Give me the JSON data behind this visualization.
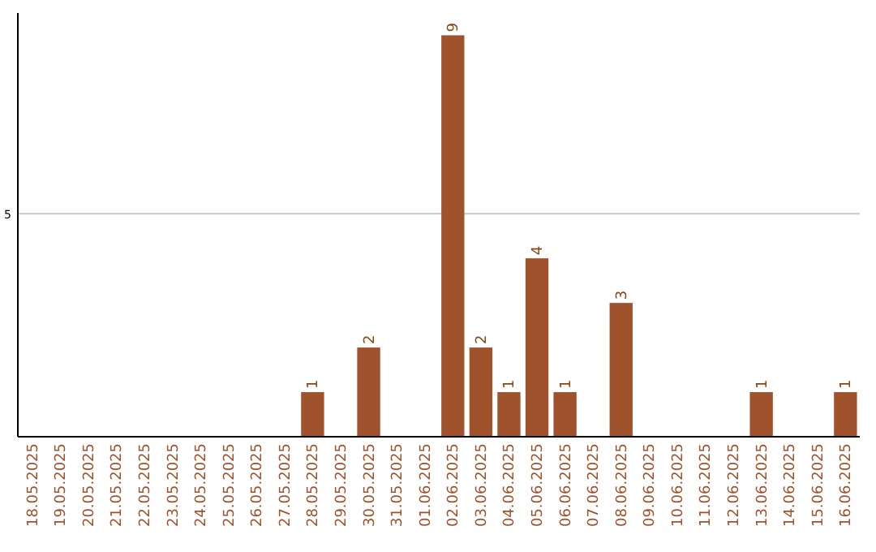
{
  "chart_data": {
    "type": "bar",
    "categories": [
      "18.05.2025",
      "19.05.2025",
      "20.05.2025",
      "21.05.2025",
      "22.05.2025",
      "23.05.2025",
      "24.05.2025",
      "25.05.2025",
      "26.05.2025",
      "27.05.2025",
      "28.05.2025",
      "29.05.2025",
      "30.05.2025",
      "31.05.2025",
      "01.06.2025",
      "02.06.2025",
      "03.06.2025",
      "04.06.2025",
      "05.06.2025",
      "06.06.2025",
      "07.06.2025",
      "08.06.2025",
      "09.06.2025",
      "10.06.2025",
      "11.06.2025",
      "12.06.2025",
      "13.06.2025",
      "14.06.2025",
      "15.06.2025",
      "16.06.2025"
    ],
    "values": [
      0,
      0,
      0,
      0,
      0,
      0,
      0,
      0,
      0,
      0,
      1,
      0,
      2,
      0,
      0,
      9,
      2,
      1,
      4,
      1,
      0,
      3,
      0,
      0,
      0,
      0,
      1,
      0,
      0,
      1
    ],
    "value_labels": [
      null,
      null,
      null,
      null,
      null,
      null,
      null,
      null,
      null,
      null,
      "1",
      null,
      "2",
      null,
      null,
      "9",
      "2",
      "1",
      "4",
      "1",
      null,
      "3",
      null,
      null,
      null,
      null,
      "1",
      null,
      null,
      "1"
    ],
    "color": "#a0522d",
    "ylim": [
      0,
      9.5
    ],
    "yticks": [
      5
    ],
    "grid": "y"
  }
}
